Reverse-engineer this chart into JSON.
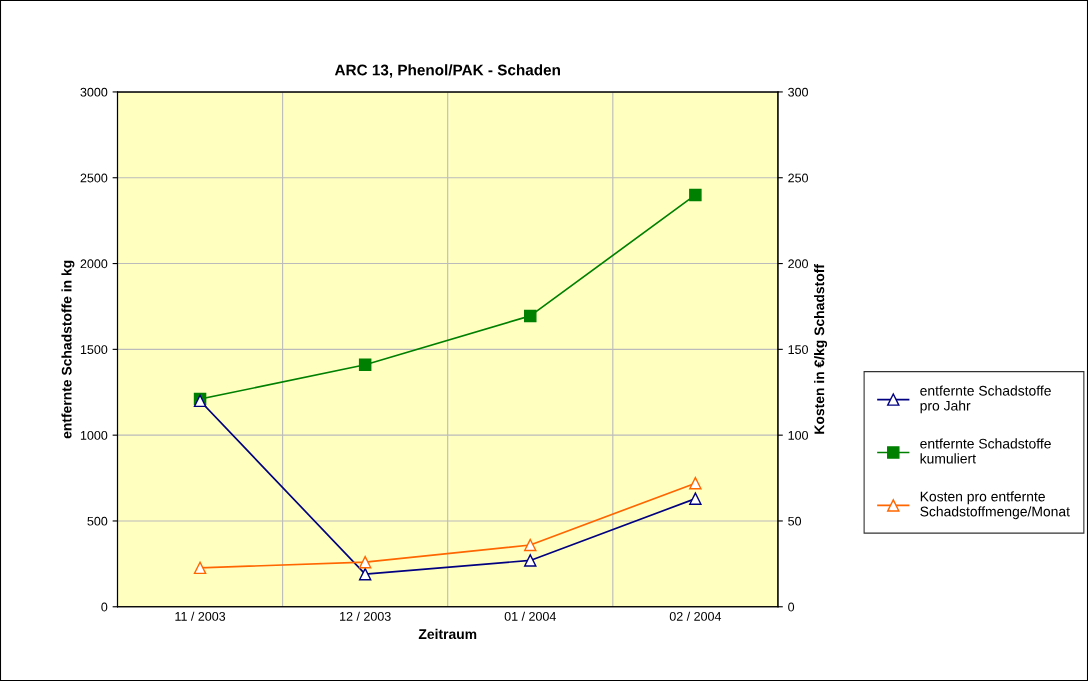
{
  "chart_data": {
    "type": "line",
    "title": "ARC 13, Phenol/PAK - Schaden",
    "xlabel": "Zeitraum",
    "ylabel": "entfernte Schadstoffe in kg",
    "y2label": "Kosten in €/kg Schadstoff",
    "categories": [
      "11 / 2003",
      "12 / 2003",
      "01 / 2004",
      "02 / 2004"
    ],
    "series": [
      {
        "name": "entfernte Schadstoffe pro Jahr",
        "color": "#000080",
        "marker": "triangle",
        "values": [
          1200,
          190,
          270,
          630
        ]
      },
      {
        "name": "entfernte Schadstoffe kumuliert",
        "color": "#008000",
        "marker": "square",
        "values": [
          1210,
          1410,
          1695,
          2400
        ]
      },
      {
        "name": "Kosten pro entfernte Schadstoffmenge/Monat",
        "color": "#ff6600",
        "marker": "triangle",
        "axis": "y2",
        "values": [
          22.7,
          26,
          36,
          72
        ]
      }
    ],
    "ylim": [
      0,
      3000
    ],
    "yticks": [
      0,
      500,
      1000,
      1500,
      2000,
      2500,
      3000
    ],
    "y2lim": [
      0,
      300
    ],
    "y2ticks": [
      0,
      50,
      100,
      150,
      200,
      250,
      300
    ],
    "grid": true,
    "legend": "right",
    "line_style": "solid"
  }
}
